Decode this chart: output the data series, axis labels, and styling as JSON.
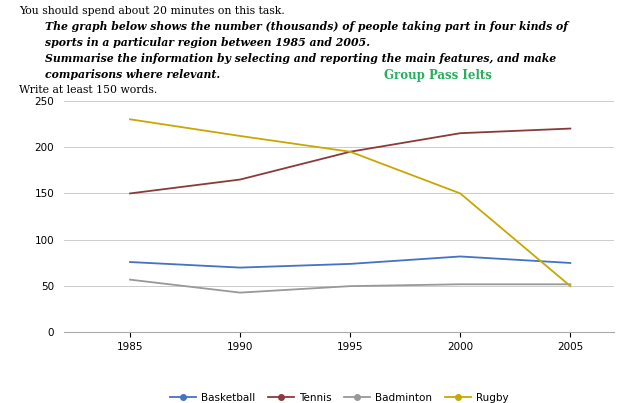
{
  "title_line1": "You should spend about 20 minutes on this task.",
  "italic_line1": "The graph below shows the number (thousands) of people taking part in four kinds of",
  "italic_line2": "sports in a particular region between 1985 and 2005.",
  "italic_line3": "Summarise the information by selecting and reporting the main features, and make",
  "italic_line4": "comparisons where relevant.",
  "watermark": "Group Pass Ielts",
  "footer": "Write at least 150 words.",
  "years": [
    1985,
    1990,
    1995,
    2000,
    2005
  ],
  "basketball": [
    76,
    70,
    74,
    82,
    75
  ],
  "tennis": [
    150,
    165,
    195,
    215,
    220
  ],
  "badminton": [
    57,
    43,
    50,
    52,
    52
  ],
  "rugby": [
    230,
    212,
    195,
    150,
    50
  ],
  "basketball_color": "#4472C4",
  "tennis_color": "#8B3A3A",
  "badminton_color": "#999999",
  "rugby_color": "#C8A800",
  "watermark_color": "#27AE60",
  "ylim": [
    0,
    250
  ],
  "yticks": [
    0,
    50,
    100,
    150,
    200,
    250
  ],
  "xticks": [
    1985,
    1990,
    1995,
    2000,
    2005
  ],
  "background_color": "#ffffff",
  "grid_color": "#cccccc"
}
